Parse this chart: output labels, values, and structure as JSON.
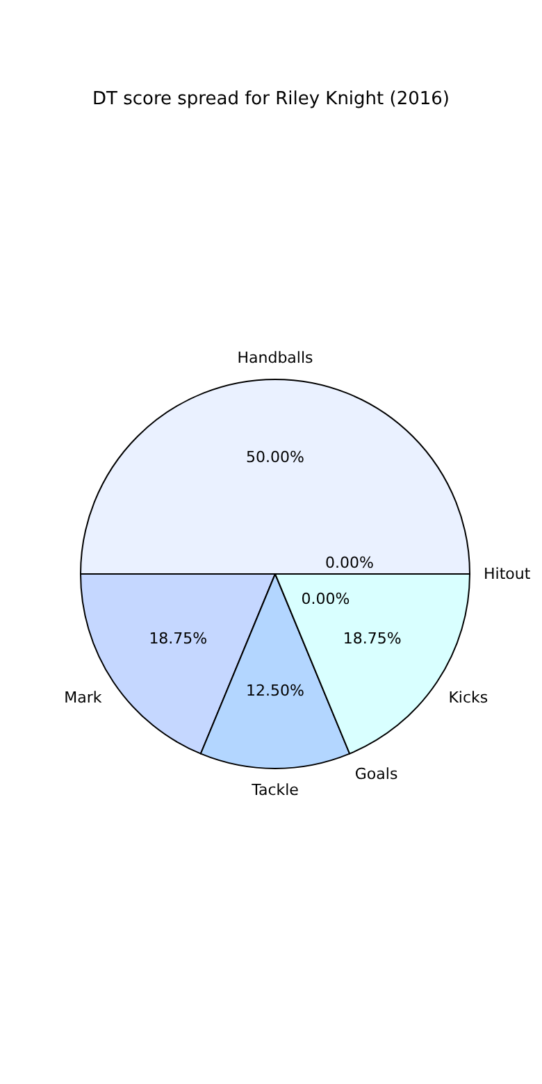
{
  "chart_data": {
    "type": "pie",
    "title": "DT score spread for Riley Knight (2016)",
    "categories": [
      "Handballs",
      "Mark",
      "Tackle",
      "Goals",
      "Kicks",
      "Hitout"
    ],
    "values": [
      50,
      18.75,
      12.5,
      0,
      18.75,
      0
    ],
    "value_labels": [
      "50.00%",
      "18.75%",
      "12.50%",
      "0.00%",
      "18.75%",
      "0.00%"
    ],
    "colors": [
      "#eaf1ff",
      "#c5d7ff",
      "#b3d6ff",
      "#c0e8ff",
      "#d9ffff",
      "#e0e0ff"
    ]
  }
}
